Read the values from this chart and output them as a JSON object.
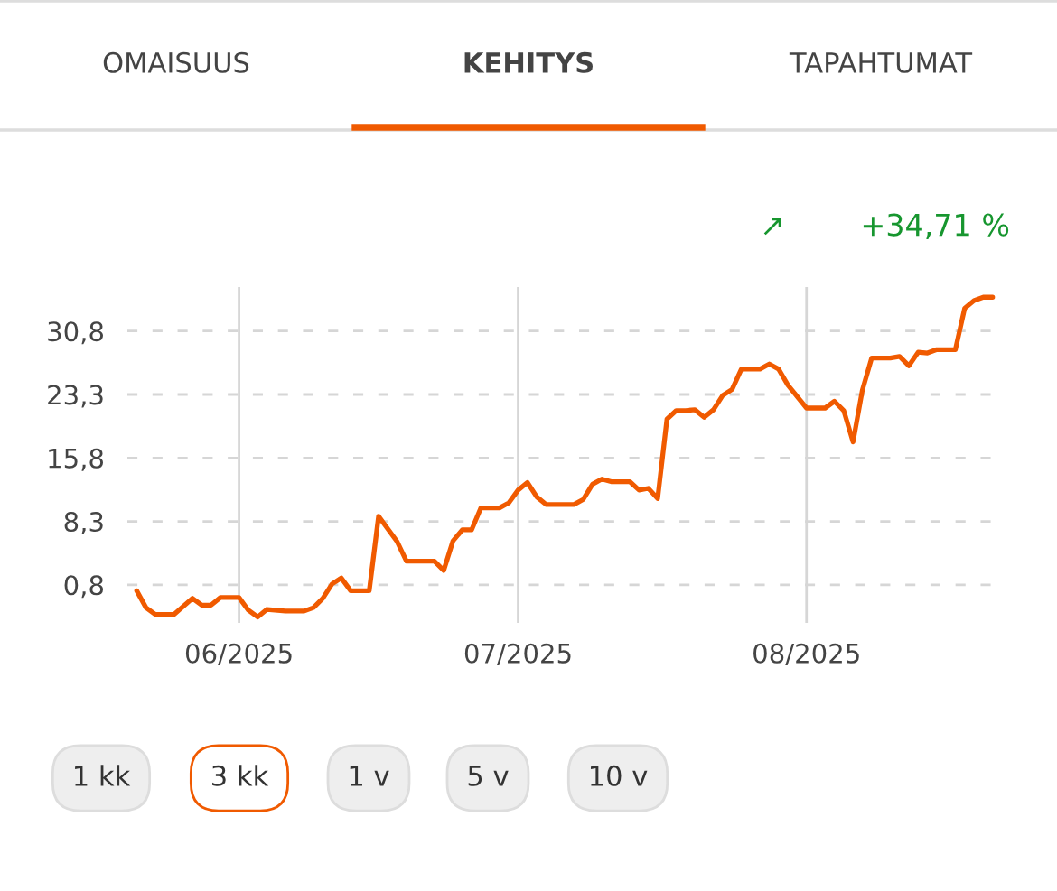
{
  "chart_data": {
    "type": "line",
    "annotations": [
      "OMAISUUS",
      "KEHITYS",
      "TAPAHTUMAT",
      "↗",
      "+34,71 %",
      "1 kk",
      "3 kk",
      "1 v",
      "5 v",
      "10 v"
    ],
    "x": [
      "2025-05-21",
      "2025-05-22",
      "2025-05-23",
      "2025-05-25",
      "2025-05-27",
      "2025-05-28",
      "2025-05-29",
      "2025-05-30",
      "2025-06-01",
      "2025-06-02",
      "2025-06-03",
      "2025-06-04",
      "2025-06-06",
      "2025-06-08",
      "2025-06-09",
      "2025-06-10",
      "2025-06-11",
      "2025-06-12",
      "2025-06-13",
      "2025-06-15",
      "2025-06-16",
      "2025-06-18",
      "2025-06-19",
      "2025-06-22",
      "2025-06-23",
      "2025-06-24",
      "2025-06-25",
      "2025-06-26",
      "2025-06-27",
      "2025-06-29",
      "2025-06-30",
      "2025-07-01",
      "2025-07-02",
      "2025-07-03",
      "2025-07-04",
      "2025-07-07",
      "2025-07-08",
      "2025-07-09",
      "2025-07-10",
      "2025-07-11",
      "2025-07-13",
      "2025-07-14",
      "2025-07-15",
      "2025-07-16",
      "2025-07-17",
      "2025-07-18",
      "2025-07-19",
      "2025-07-20",
      "2025-07-21",
      "2025-07-22",
      "2025-07-23",
      "2025-07-24",
      "2025-07-25",
      "2025-07-27",
      "2025-07-28",
      "2025-07-29",
      "2025-07-30",
      "2025-08-01",
      "2025-08-03",
      "2025-08-04",
      "2025-08-05",
      "2025-08-06",
      "2025-08-07",
      "2025-08-08",
      "2025-08-10",
      "2025-08-11",
      "2025-08-12",
      "2025-08-13",
      "2025-08-14",
      "2025-08-15",
      "2025-08-17",
      "2025-08-18",
      "2025-08-19",
      "2025-08-20",
      "2025-08-21"
    ],
    "series": [
      {
        "color": "#f05a00",
        "values": [
          0.1,
          -1.9,
          -2.7,
          -2.7,
          -0.8,
          -1.6,
          -1.6,
          -0.7,
          -0.7,
          -2.2,
          -3.0,
          -2.1,
          -2.3,
          -2.3,
          -1.9,
          -0.8,
          0.9,
          1.6,
          0.1,
          0.1,
          8.9,
          5.9,
          3.6,
          3.6,
          2.5,
          6.0,
          7.3,
          7.3,
          9.9,
          9.9,
          10.5,
          12.0,
          12.9,
          11.2,
          10.3,
          10.3,
          10.9,
          12.7,
          13.3,
          13.0,
          13.0,
          12.0,
          12.2,
          11.0,
          20.4,
          21.4,
          21.4,
          21.5,
          20.6,
          21.5,
          23.2,
          23.9,
          26.3,
          26.3,
          26.9,
          26.3,
          24.4,
          21.7,
          21.7,
          22.5,
          21.4,
          17.7,
          23.8,
          27.6,
          27.6,
          27.8,
          26.7,
          28.3,
          28.2,
          28.6,
          28.6,
          33.5,
          34.4,
          34.8,
          34.8
        ]
      }
    ],
    "xlim": [
      "2025-05-20",
      "2025-08-22"
    ],
    "xticks": [
      {
        "value": "2025-06-01",
        "label": "06/2025"
      },
      {
        "value": "2025-07-01",
        "label": "07/2025"
      },
      {
        "value": "2025-08-01",
        "label": "08/2025"
      }
    ],
    "ylim": [
      -3.7,
      36.0
    ],
    "yticks": [
      {
        "value": 0.8,
        "label": "0,8"
      },
      {
        "value": 8.3,
        "label": "8,3"
      },
      {
        "value": 15.8,
        "label": "15,8"
      },
      {
        "value": 23.3,
        "label": "23,3"
      },
      {
        "value": 30.8,
        "label": "30,8"
      }
    ],
    "grid": true,
    "marker": "none",
    "line_style": "solid"
  }
}
